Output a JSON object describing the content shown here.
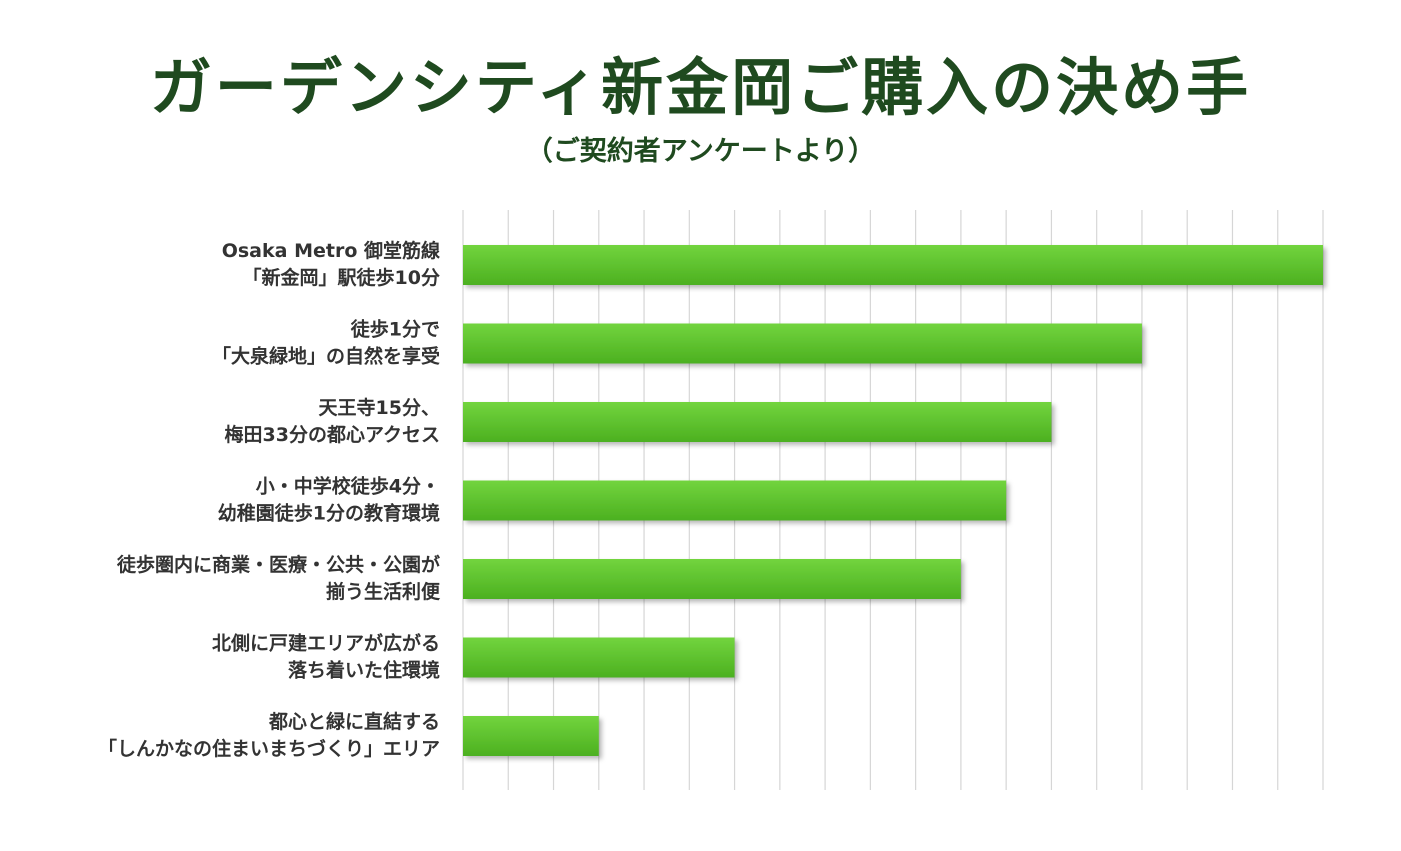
{
  "title": "ガーデンシティ新金岡ご購入の決め手",
  "subtitle": "（ご契約者アンケートより）",
  "colors": {
    "title": "#1f4a1f",
    "bar": "#55bb28",
    "bar_light": "#6fd03a",
    "grid": "#d6d6d6",
    "label": "#333333"
  },
  "chart_data": {
    "type": "bar",
    "orientation": "horizontal",
    "title": "ガーデンシティ新金岡ご購入の決め手",
    "subtitle": "（ご契約者アンケートより）",
    "grid": true,
    "legend": "none",
    "xlim": [
      0,
      19
    ],
    "categories": [
      [
        "Osaka Metro 御堂筋線",
        "「新金岡」駅徒歩10分"
      ],
      [
        "徒歩1分で",
        "「大泉緑地」の自然を享受"
      ],
      [
        "天王寺15分、",
        "梅田33分の都心アクセス"
      ],
      [
        "小・中学校徒歩4分・",
        "幼稚園徒歩1分の教育環境"
      ],
      [
        "徒歩圏内に商業・医療・公共・公園が",
        "揃う生活利便"
      ],
      [
        "北側に戸建エリアが広がる",
        "落ち着いた住環境"
      ],
      [
        "都心と緑に直結する",
        "「しんかなの住まいまちづくり」エリア"
      ]
    ],
    "values": [
      19,
      15,
      13,
      12,
      11,
      6,
      3
    ]
  }
}
